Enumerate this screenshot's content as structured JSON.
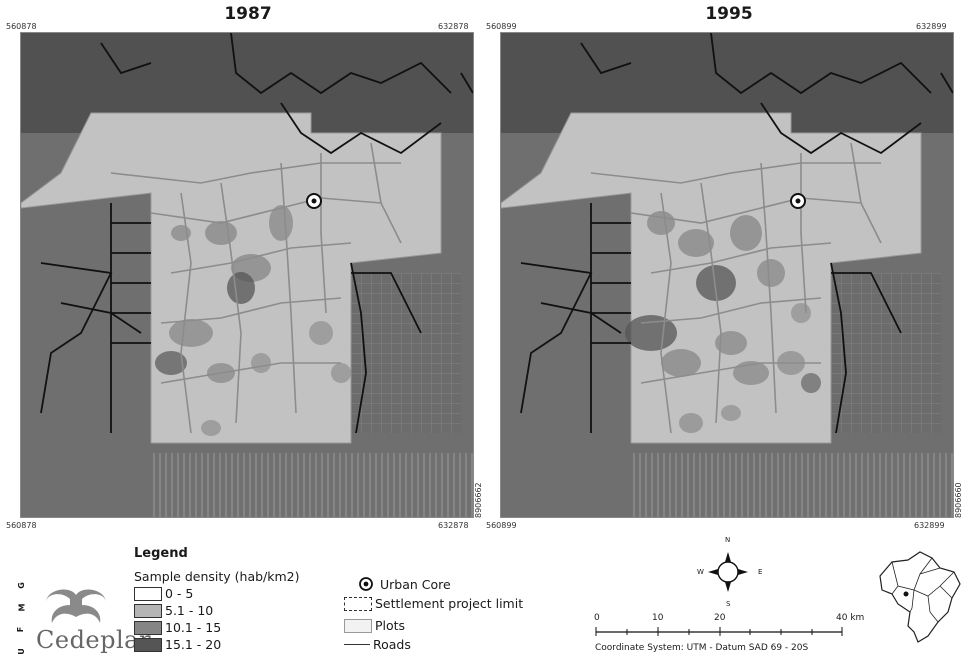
{
  "maps": [
    {
      "year": "1987",
      "top_left_x": "560878",
      "top_right_x": "632878",
      "bottom_left_x": "560878",
      "bottom_right_x": "632878",
      "right_y": "8906662"
    },
    {
      "year": "1995",
      "top_left_x": "560899",
      "top_right_x": "632899",
      "bottom_left_x": "560899",
      "bottom_right_x": "632899",
      "right_y": "8906660"
    }
  ],
  "legend": {
    "title": "Legend",
    "density_title": "Sample density (hab/km2)",
    "density_classes": [
      {
        "label": "0 - 5",
        "color": "#ffffff"
      },
      {
        "label": "5.1 - 10",
        "color": "#b5b5b5"
      },
      {
        "label": "10.1 - 15",
        "color": "#858585"
      },
      {
        "label": "15.1 - 20",
        "color": "#555555"
      }
    ],
    "symbols": {
      "urban_core": "Urban Core",
      "settlement_limit": "Settlement project limit",
      "plots": "Plots",
      "roads": "Roads"
    }
  },
  "compass": {
    "n": "N",
    "s": "S",
    "e": "E",
    "w": "W"
  },
  "scale_bar": {
    "ticks": [
      "0",
      "10",
      "20",
      "40 km"
    ],
    "note": "Coordinate System: UTM - Datum SAD 69 - 20S"
  },
  "institution": {
    "acronym_letters": [
      "G",
      "M",
      "F",
      "U"
    ],
    "name": "Cedeplar"
  },
  "colors": {
    "forest": "#6f6f6f",
    "project_area": "#c2c2c2",
    "road_black": "#111111",
    "road_grey": "#8c8c8c",
    "density_mid": "#858585",
    "density_dark": "#555555"
  }
}
